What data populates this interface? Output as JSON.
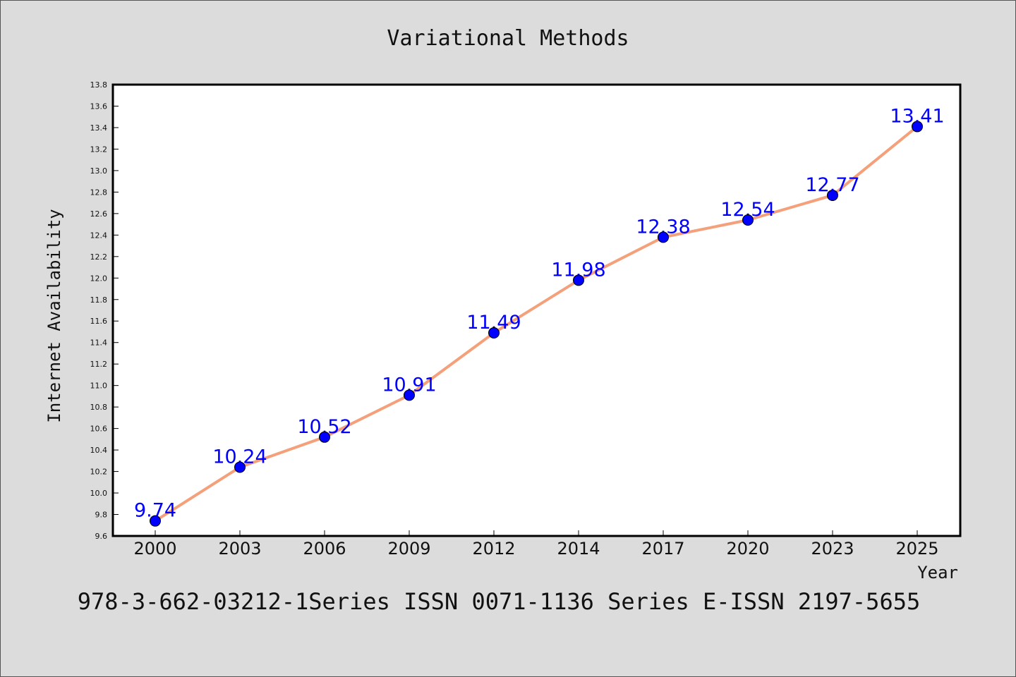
{
  "footer": {
    "text": "978-3-662-03212-1Series ISSN 0071-1136 Series E-ISSN 2197-5655"
  },
  "chart_data": {
    "type": "line",
    "title": "Variational Methods",
    "xlabel": "Year",
    "ylabel": "Internet Availability",
    "categories": [
      "2000",
      "2003",
      "2006",
      "2009",
      "2012",
      "2014",
      "2017",
      "2020",
      "2023",
      "2025"
    ],
    "series": [
      {
        "values": [
          9.74,
          10.24,
          10.52,
          10.91,
          11.49,
          11.98,
          12.38,
          12.54,
          12.77,
          13.41
        ],
        "line_color": "#f4a07a",
        "marker_color": "#0000ff"
      }
    ],
    "data_labels": [
      "9.74",
      "10.24",
      "10.52",
      "10.91",
      "11.49",
      "11.98",
      "12.38",
      "12.54",
      "12.77",
      "13.41"
    ],
    "ylim": [
      9.6,
      13.8
    ],
    "yticks": [
      "9.6",
      "9.8",
      "10.0",
      "10.2",
      "10.4",
      "10.6",
      "10.8",
      "11.0",
      "11.2",
      "11.4",
      "11.6",
      "11.8",
      "12.0",
      "12.2",
      "12.4",
      "12.6",
      "12.8",
      "13.0",
      "13.2",
      "13.4",
      "13.6",
      "13.8"
    ],
    "grid": false,
    "legend": "none"
  }
}
